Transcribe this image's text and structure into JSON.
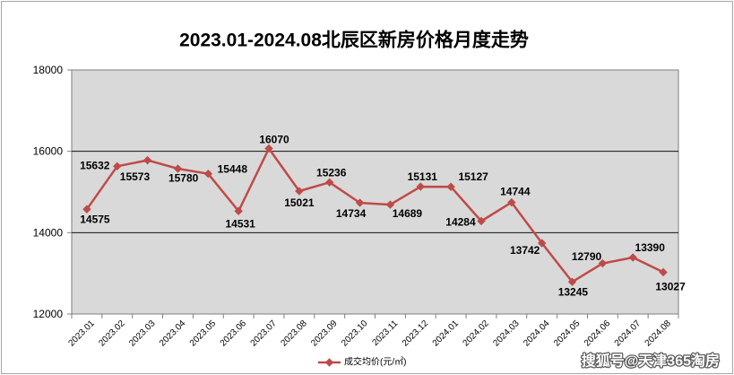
{
  "chart_data": {
    "type": "line",
    "title": "2023.01-2024.08北辰区新房价格月度走势",
    "categories": [
      "2023.01",
      "2023.02",
      "2023.03",
      "2023.04",
      "2023.05",
      "2023.06",
      "2023.07",
      "2023.08",
      "2023.09",
      "2023.10",
      "2023.11",
      "2023.12",
      "2024.01",
      "2024.02",
      "2024.03",
      "2024.04",
      "2024.05",
      "2024.06",
      "2024.07",
      "2024.08"
    ],
    "series": [
      {
        "name": "成交均价(元/㎡)",
        "values": [
          14575,
          15632,
          15780,
          15573,
          15448,
          14531,
          16070,
          15021,
          15236,
          14734,
          14689,
          15131,
          15127,
          14284,
          14744,
          13742,
          12790,
          13245,
          13390,
          13027
        ],
        "color": "#be4b48",
        "data_labels": true
      }
    ],
    "ylim": [
      12000,
      18000
    ],
    "y_ticks": [
      18000,
      16000,
      14000,
      12000
    ],
    "grid": true,
    "legend": "bottom",
    "plot_background": "#d9d9d9"
  },
  "watermark": "搜狐号@天津365淘房"
}
